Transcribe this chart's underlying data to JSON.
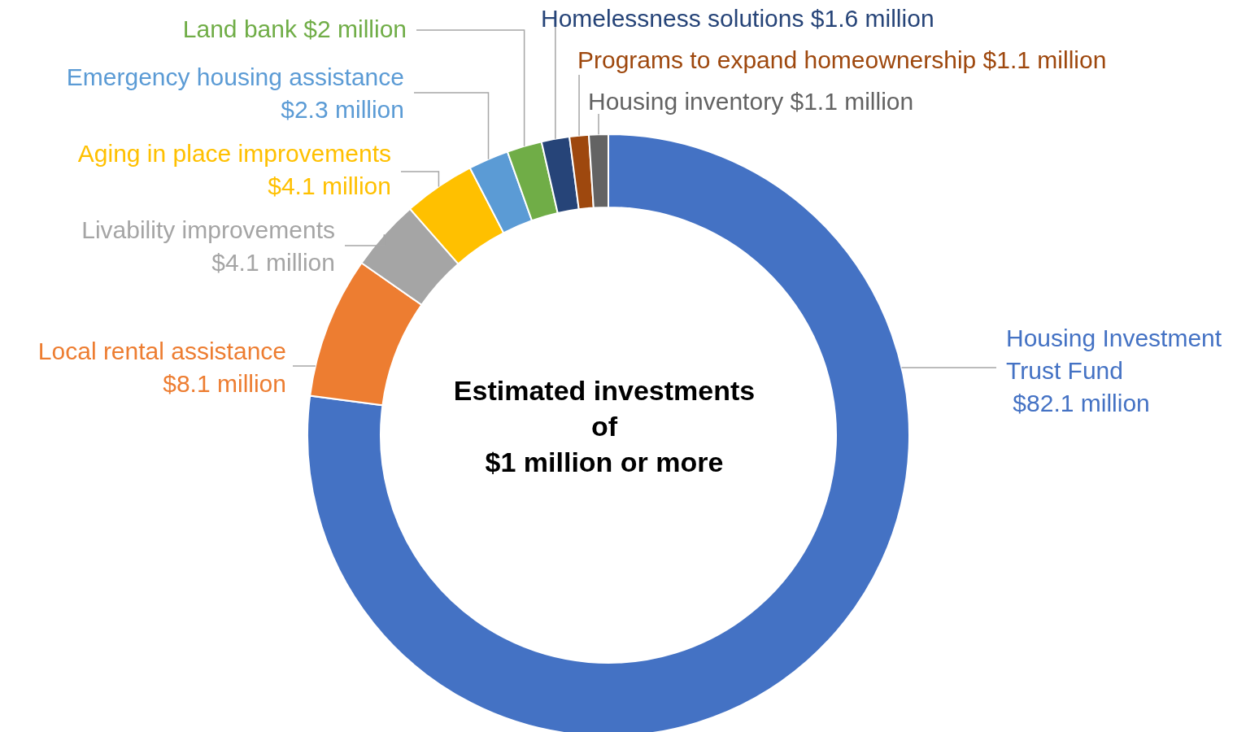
{
  "chart_data": {
    "type": "donut",
    "title": "Estimated investments of $1 million or more",
    "categories": [
      "Housing Investment Trust Fund",
      "Local rental assistance",
      "Livability improvements",
      "Aging in place improvements",
      "Emergency housing assistance",
      "Land bank",
      "Homelessness solutions",
      "Programs to expand homeownership",
      "Housing inventory"
    ],
    "values": [
      82.1,
      8.1,
      4.1,
      4.1,
      2.3,
      2,
      1.6,
      1.1,
      1.1
    ],
    "value_labels": [
      "$82.1 million",
      "$8.1 million",
      "$4.1 million",
      "$4.1 million",
      "$2.3 million",
      "$2 million",
      "$1.6 million",
      "$1.1 million",
      "$1.1 million"
    ],
    "colors": [
      "#4472c4",
      "#ed7d31",
      "#a5a5a5",
      "#ffc000",
      "#5b9bd5",
      "#70ad47",
      "#264478",
      "#9e480e",
      "#636363"
    ]
  }
}
